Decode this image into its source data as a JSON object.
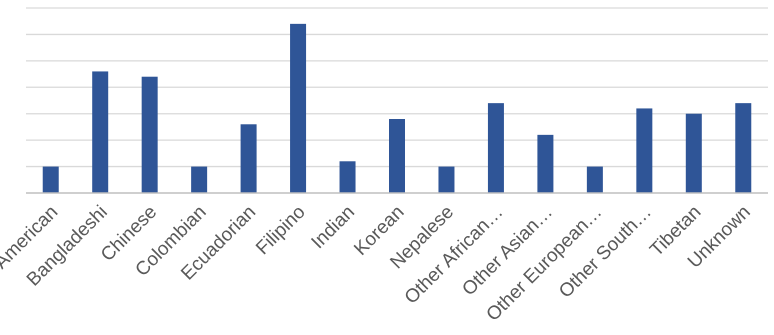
{
  "chart_data": {
    "type": "bar",
    "title": "",
    "xlabel": "",
    "ylabel": "",
    "categories": [
      "American",
      "Bangladeshi",
      "Chinese",
      "Colombian",
      "Ecuadorian",
      "Filipino",
      "Indian",
      "Korean",
      "Nepalese",
      "Other African…",
      "Other Asian…",
      "Other European…",
      "Other South…",
      "Tibetan",
      "Unknown"
    ],
    "values": [
      1,
      4.6,
      4.4,
      1,
      2.6,
      6.4,
      1.2,
      2.8,
      1,
      3.4,
      2.2,
      1,
      3.2,
      3,
      3.4
    ],
    "ylim": [
      0,
      7
    ],
    "y_tick_step": 1,
    "y_axis_labels_shown": false,
    "grid": true,
    "legend": "none",
    "colors": {
      "bar": "#2F5597",
      "grid": "#D9D9D9",
      "axis": "#BFBFBF",
      "label": "#595959"
    }
  }
}
